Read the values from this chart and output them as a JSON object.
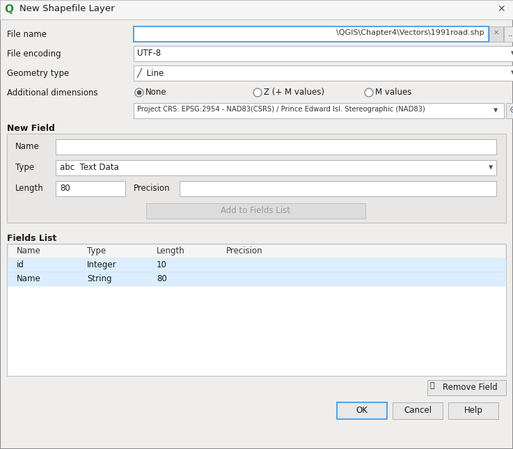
{
  "title": "New Shapefile Layer",
  "outer_bg": "#c8c8c8",
  "dialog_bg": "#efeeec",
  "inner_bg": "#efeeec",
  "white": "#ffffff",
  "title_bar_bg": "#f5f5f5",
  "input_border_active": "#5ba3e0",
  "input_border_normal": "#b0b0b0",
  "button_bg": "#e8e8e8",
  "button_border": "#b0b0b0",
  "ok_border": "#5ba3e0",
  "text_dark": "#1a1a1a",
  "text_gray": "#888888",
  "section_bold": "#1a1a1a",
  "table_header_bg": "#f5f5f5",
  "table_row0_bg": "#daeeff",
  "table_row1_bg": "#daeeff",
  "table_white": "#ffffff",
  "new_field_box_bg": "#e8e7e5",
  "fields_list_box_bg": "#ffffff",
  "file_name_value": "\\QGIS\\Chapter4\\Vectors\\1991road.shp",
  "file_encoding_value": "UTF-8",
  "geometry_type_value": "╱  Line",
  "crs_value": "Project CRS: EPSG:2954 - NAD83(CSRS) / Prince Edward Isl. Stereographic (NAD83)",
  "add_dim_label": "Additional dimensions",
  "radio_none": "None",
  "radio_z": "Z (+ M values)",
  "radio_m": "M values",
  "new_field_label": "New Field",
  "type_value": "abc  Text Data",
  "length_value": "80",
  "add_button": "Add to Fields List",
  "fields_list_label": "Fields List",
  "table_headers": [
    "Name",
    "Type",
    "Length",
    "Precision"
  ],
  "table_rows": [
    [
      "id",
      "Integer",
      "10",
      ""
    ],
    [
      "Name",
      "String",
      "80",
      ""
    ]
  ],
  "remove_button": "Remove Field",
  "ok_button": "OK",
  "cancel_button": "Cancel",
  "help_button": "Help"
}
